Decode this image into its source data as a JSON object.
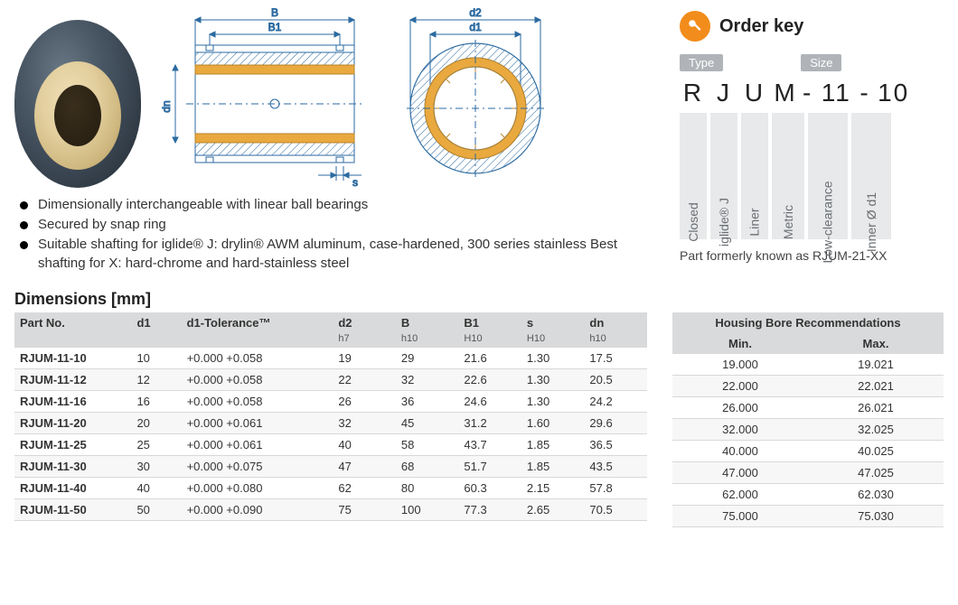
{
  "figure": {
    "section": {
      "labels": {
        "B": "B",
        "B1": "B1",
        "dn": "dn",
        "s": "s"
      }
    },
    "front": {
      "labels": {
        "d2": "d2",
        "d1": "d1"
      }
    },
    "stroke": "#2b6aa0",
    "hatch": "#2b6aa0",
    "accent": "#e9a93f"
  },
  "bullets": [
    "Dimensionally interchangeable with linear ball bearings",
    "Secured by snap ring",
    "Suitable shafting for iglide® J: drylin® AWM aluminum, case-hardened, 300 series stainless Best shafting for  X: hard-chrome and hard-stainless steel"
  ],
  "orderKey": {
    "title": "Order key",
    "typeLabel": "Type",
    "sizeLabel": "Size",
    "code": [
      "R",
      "J",
      "U",
      "M",
      "-",
      "11",
      "-",
      "10"
    ],
    "columns": [
      "Closed",
      "iglide® J",
      "Liner",
      "Metric",
      "Low-clearance",
      "Inner Ø d1"
    ],
    "formerly": "Part formerly known as RJUM-21-XX"
  },
  "dimensions": {
    "title": "Dimensions [mm]",
    "columns": [
      "Part No.",
      "d1",
      "d1-Tolerance™",
      "d2",
      "B",
      "B1",
      "s",
      "dn"
    ],
    "sub": [
      "",
      "",
      "",
      "h7",
      "h10",
      "H10",
      "H10",
      "h10"
    ],
    "rows": [
      [
        "RJUM-11-10",
        "10",
        "+0.000 +0.058",
        "19",
        "29",
        "21.6",
        "1.30",
        "17.5"
      ],
      [
        "RJUM-11-12",
        "12",
        "+0.000 +0.058",
        "22",
        "32",
        "22.6",
        "1.30",
        "20.5"
      ],
      [
        "RJUM-11-16",
        "16",
        "+0.000 +0.058",
        "26",
        "36",
        "24.6",
        "1.30",
        "24.2"
      ],
      [
        "RJUM-11-20",
        "20",
        "+0.000 +0.061",
        "32",
        "45",
        "31.2",
        "1.60",
        "29.6"
      ],
      [
        "RJUM-11-25",
        "25",
        "+0.000 +0.061",
        "40",
        "58",
        "43.7",
        "1.85",
        "36.5"
      ],
      [
        "RJUM-11-30",
        "30",
        "+0.000 +0.075",
        "47",
        "68",
        "51.7",
        "1.85",
        "43.5"
      ],
      [
        "RJUM-11-40",
        "40",
        "+0.000 +0.080",
        "62",
        "80",
        "60.3",
        "2.15",
        "57.8"
      ],
      [
        "RJUM-11-50",
        "50",
        "+0.000 +0.090",
        "75",
        "100",
        "77.3",
        "2.65",
        "70.5"
      ]
    ]
  },
  "bore": {
    "title": "Housing Bore Recommendations",
    "columns": [
      "Min.",
      "Max."
    ],
    "rows": [
      [
        "19.000",
        "19.021"
      ],
      [
        "22.000",
        "22.021"
      ],
      [
        "26.000",
        "26.021"
      ],
      [
        "32.000",
        "32.025"
      ],
      [
        "40.000",
        "40.025"
      ],
      [
        "47.000",
        "47.025"
      ],
      [
        "62.000",
        "62.030"
      ],
      [
        "75.000",
        "75.030"
      ]
    ]
  }
}
